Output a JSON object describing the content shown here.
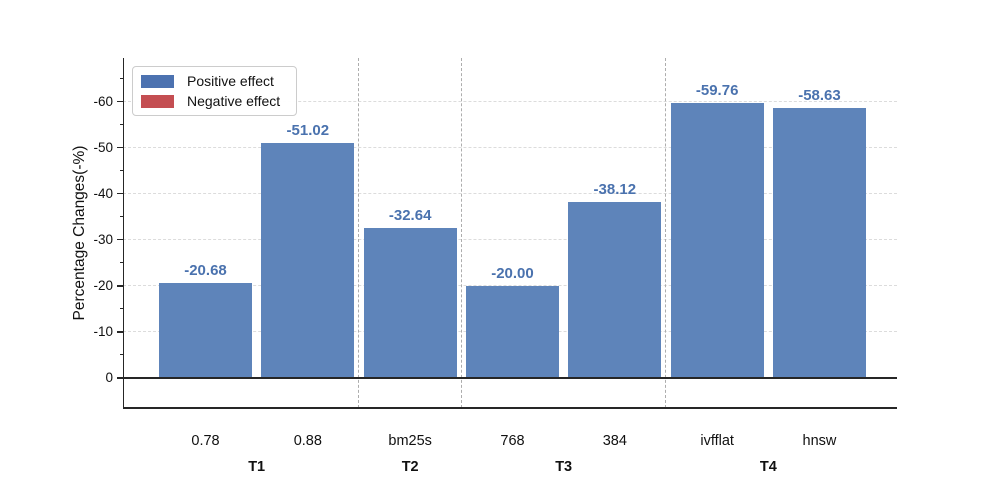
{
  "figure": {
    "background": "#ffffff"
  },
  "chart_data": {
    "type": "bar",
    "title": "",
    "xlabel": "",
    "ylabel": "Percentage Changes(-%)",
    "categories": [
      "0.78",
      "0.88",
      "bm25s",
      "768",
      "384",
      "ivfflat",
      "hnsw"
    ],
    "values": [
      -20.68,
      -51.02,
      -32.64,
      -20.0,
      -38.12,
      -59.76,
      -58.63
    ],
    "bar_labels": [
      "-20.68",
      "-51.02",
      "-32.64",
      "-20.00",
      "-38.12",
      "-59.76",
      "-58.63"
    ],
    "groups": [
      {
        "label": "T1",
        "start": 0,
        "end": 1
      },
      {
        "label": "T2",
        "start": 2,
        "end": 2
      },
      {
        "label": "T3",
        "start": 3,
        "end": 4
      },
      {
        "label": "T4",
        "start": 5,
        "end": 6
      }
    ],
    "separators_after_index": [
      1,
      2,
      4
    ],
    "yticks": [
      0,
      -10,
      -20,
      -30,
      -40,
      -50,
      -60
    ],
    "minor_ytick_step": 5,
    "ylim": [
      6.5,
      -69.5
    ],
    "grid": "horizontal-dashed",
    "bar_color": "#5e84ba",
    "value_label_color": "#4a72ae",
    "separator_color": "#adadad",
    "legend": {
      "position": "upper-left",
      "entries": [
        {
          "label": "Positive effect",
          "color": "#4c72b0"
        },
        {
          "label": "Negative effect",
          "color": "#c44e52"
        }
      ]
    }
  }
}
